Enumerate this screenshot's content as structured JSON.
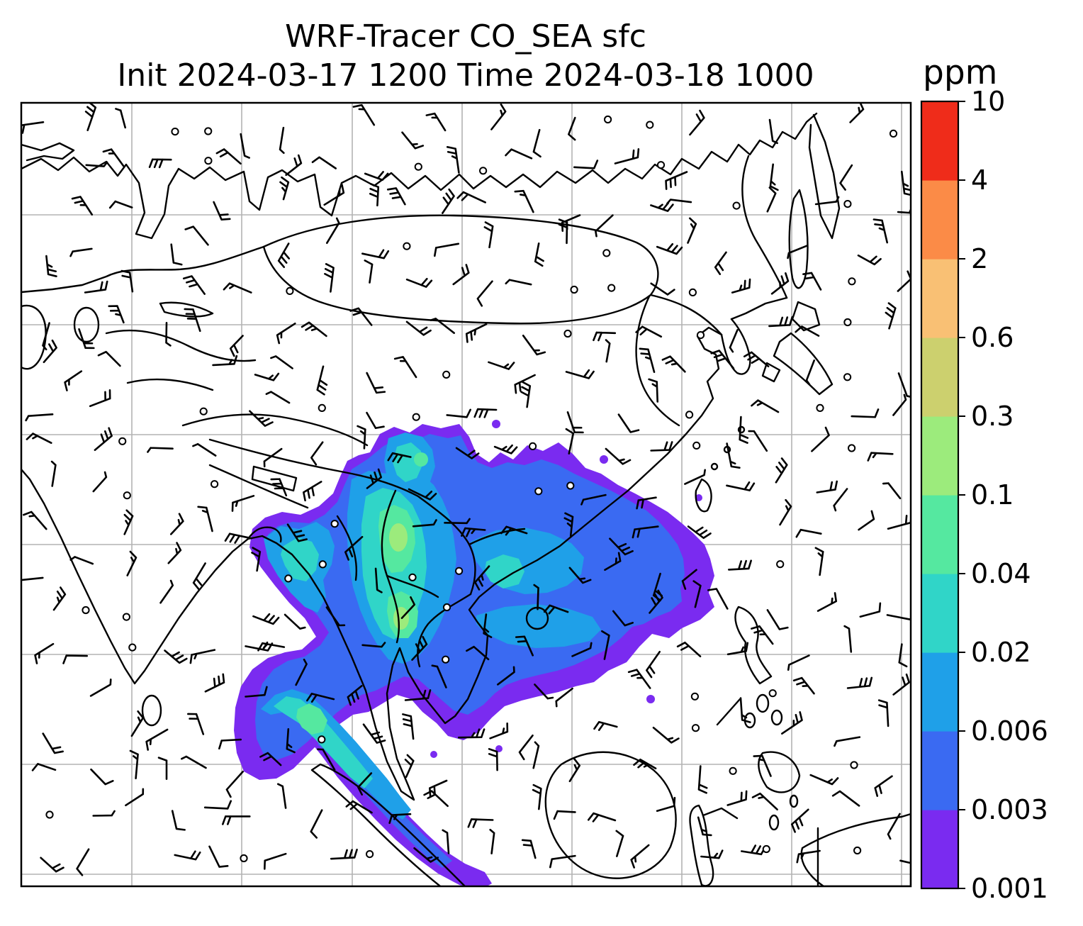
{
  "title": {
    "line1": "WRF-Tracer CO_SEA sfc",
    "line2": "Init 2024-03-17 1200 Time 2024-03-18 1000"
  },
  "colorbar": {
    "label": "ppm",
    "tick_labels": [
      "0.001",
      "0.003",
      "0.006",
      "0.02",
      "0.04",
      "0.1",
      "0.3",
      "0.6",
      "2",
      "4",
      "10"
    ]
  },
  "chart_data": {
    "type": "heatmap",
    "title": "WRF-Tracer CO_SEA sfc",
    "subtitle": "Init 2024-03-17 1200 Time 2024-03-18 1000",
    "variable": "CO_SEA surface tracer concentration",
    "units": "ppm",
    "levels": [
      0.001,
      0.003,
      0.006,
      0.02,
      0.04,
      0.1,
      0.3,
      0.6,
      2,
      4,
      10
    ],
    "colors": [
      "#7a2bf0",
      "#3a6af2",
      "#1fa0e8",
      "#30d5c8",
      "#55e8a0",
      "#9ceb7c",
      "#ccd06e",
      "#f9c074",
      "#fb8b47",
      "#ef2c1a"
    ],
    "colorbar_position": "right",
    "legend_position": "none",
    "grid": true,
    "overlays": [
      "coastlines",
      "country-borders",
      "wind-barbs",
      "lat-lon-gridlines",
      "calm-wind-circles"
    ],
    "plume_description": "Filled tracer plume spans Indochina, southern China and the South China Sea with a southwest arm along the Bay of Bengal and Sumatra; outer fringe at 0.001-0.003 ppm (purple), broad interior 0.003-0.02 ppm (blue), cores 0.02-0.1 ppm (cyan/green) over Laos-Vietnam-Thailand, peak spots 0.1-0.3 ppm (light green)",
    "max_shown_level": 0.3
  }
}
